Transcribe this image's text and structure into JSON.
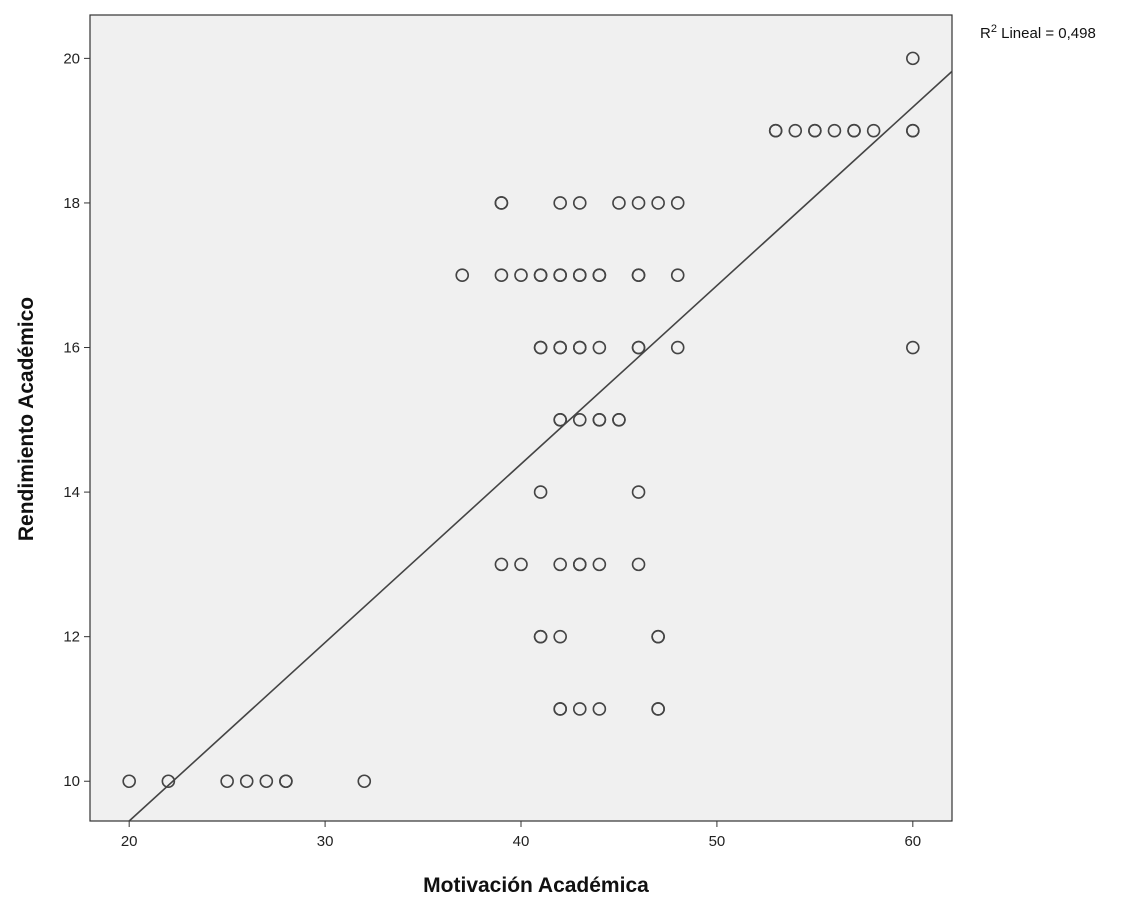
{
  "chart_data": {
    "type": "scatter",
    "xlabel": "Motivación Académica",
    "ylabel": "Rendimiento Académico",
    "xlim": [
      18,
      62
    ],
    "ylim": [
      9.45,
      20.6
    ],
    "x_ticks": [
      20,
      30,
      40,
      50,
      60
    ],
    "y_ticks": [
      10,
      12,
      14,
      16,
      18,
      20
    ],
    "x_tick_labels": [
      "20",
      "30",
      "40",
      "50",
      "60"
    ],
    "y_tick_labels": [
      "10",
      "12",
      "14",
      "16",
      "18",
      "20"
    ],
    "grid": false,
    "background_color": "#f0f0f0",
    "marker_color": "#444444",
    "line_color": "#444444",
    "fit_line": {
      "label_prefix": "R",
      "label_sup": "2",
      "label_suffix": " Lineal = 0,498",
      "start": [
        20,
        9.45
      ],
      "end": [
        62,
        19.82
      ]
    },
    "points": [
      {
        "x": 20,
        "y": 10
      },
      {
        "x": 22,
        "y": 10
      },
      {
        "x": 25,
        "y": 10
      },
      {
        "x": 26,
        "y": 10
      },
      {
        "x": 27,
        "y": 10
      },
      {
        "x": 28,
        "y": 10
      },
      {
        "x": 28,
        "y": 10
      },
      {
        "x": 32,
        "y": 10
      },
      {
        "x": 42,
        "y": 11
      },
      {
        "x": 42,
        "y": 11
      },
      {
        "x": 43,
        "y": 11
      },
      {
        "x": 44,
        "y": 11
      },
      {
        "x": 47,
        "y": 11
      },
      {
        "x": 47,
        "y": 11
      },
      {
        "x": 41,
        "y": 12
      },
      {
        "x": 41,
        "y": 12
      },
      {
        "x": 42,
        "y": 12
      },
      {
        "x": 47,
        "y": 12
      },
      {
        "x": 47,
        "y": 12
      },
      {
        "x": 39,
        "y": 13
      },
      {
        "x": 40,
        "y": 13
      },
      {
        "x": 42,
        "y": 13
      },
      {
        "x": 43,
        "y": 13
      },
      {
        "x": 43,
        "y": 13
      },
      {
        "x": 44,
        "y": 13
      },
      {
        "x": 46,
        "y": 13
      },
      {
        "x": 41,
        "y": 14
      },
      {
        "x": 46,
        "y": 14
      },
      {
        "x": 42,
        "y": 15
      },
      {
        "x": 42,
        "y": 15
      },
      {
        "x": 43,
        "y": 15
      },
      {
        "x": 44,
        "y": 15
      },
      {
        "x": 44,
        "y": 15
      },
      {
        "x": 45,
        "y": 15
      },
      {
        "x": 45,
        "y": 15
      },
      {
        "x": 41,
        "y": 16
      },
      {
        "x": 41,
        "y": 16
      },
      {
        "x": 42,
        "y": 16
      },
      {
        "x": 42,
        "y": 16
      },
      {
        "x": 43,
        "y": 16
      },
      {
        "x": 43,
        "y": 16
      },
      {
        "x": 44,
        "y": 16
      },
      {
        "x": 46,
        "y": 16
      },
      {
        "x": 46,
        "y": 16
      },
      {
        "x": 48,
        "y": 16
      },
      {
        "x": 60,
        "y": 16
      },
      {
        "x": 37,
        "y": 17
      },
      {
        "x": 39,
        "y": 17
      },
      {
        "x": 40,
        "y": 17
      },
      {
        "x": 41,
        "y": 17
      },
      {
        "x": 41,
        "y": 17
      },
      {
        "x": 42,
        "y": 17
      },
      {
        "x": 42,
        "y": 17
      },
      {
        "x": 43,
        "y": 17
      },
      {
        "x": 43,
        "y": 17
      },
      {
        "x": 44,
        "y": 17
      },
      {
        "x": 44,
        "y": 17
      },
      {
        "x": 46,
        "y": 17
      },
      {
        "x": 46,
        "y": 17
      },
      {
        "x": 48,
        "y": 17
      },
      {
        "x": 39,
        "y": 18
      },
      {
        "x": 39,
        "y": 18
      },
      {
        "x": 42,
        "y": 18
      },
      {
        "x": 43,
        "y": 18
      },
      {
        "x": 45,
        "y": 18
      },
      {
        "x": 46,
        "y": 18
      },
      {
        "x": 47,
        "y": 18
      },
      {
        "x": 48,
        "y": 18
      },
      {
        "x": 53,
        "y": 19
      },
      {
        "x": 53,
        "y": 19
      },
      {
        "x": 54,
        "y": 19
      },
      {
        "x": 55,
        "y": 19
      },
      {
        "x": 55,
        "y": 19
      },
      {
        "x": 56,
        "y": 19
      },
      {
        "x": 57,
        "y": 19
      },
      {
        "x": 57,
        "y": 19
      },
      {
        "x": 58,
        "y": 19
      },
      {
        "x": 60,
        "y": 19
      },
      {
        "x": 60,
        "y": 19
      },
      {
        "x": 60,
        "y": 20
      }
    ]
  }
}
